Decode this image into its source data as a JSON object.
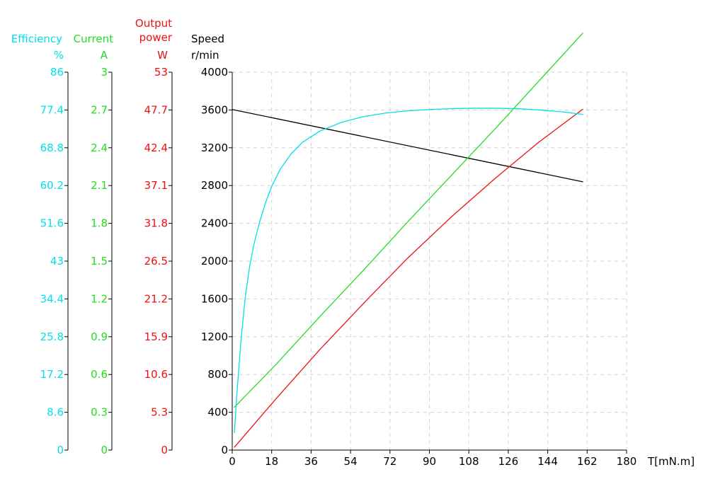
{
  "chart_data": {
    "type": "line",
    "x_axis": {
      "label": "T[mN.m]",
      "min": 0,
      "max": 180,
      "ticks": [
        0,
        18,
        36,
        54,
        72,
        90,
        108,
        126,
        144,
        162,
        180
      ],
      "grid": true
    },
    "y_axes": [
      {
        "id": "efficiency",
        "title": "Efficiency",
        "unit": "%",
        "color": "#00e0e8",
        "min": 0,
        "max": 86,
        "ticks": [
          "0",
          "8.6",
          "17.2",
          "25.8",
          "34.4",
          "43",
          "51.6",
          "60.2",
          "68.8",
          "77.4",
          "86"
        ]
      },
      {
        "id": "current",
        "title": "Current",
        "unit": "A",
        "color": "#22dd22",
        "min": 0,
        "max": 3,
        "ticks": [
          "0",
          "0.3",
          "0.6",
          "0.9",
          "1.2",
          "1.5",
          "1.8",
          "2.1",
          "2.4",
          "2.7",
          "3"
        ]
      },
      {
        "id": "power",
        "title": "Output power",
        "title_lines": [
          "Output",
          "power"
        ],
        "unit": "W",
        "color": "#ee1111",
        "min": 0,
        "max": 53,
        "ticks": [
          "0",
          "5.3",
          "10.6",
          "15.9",
          "21.2",
          "26.5",
          "31.8",
          "37.1",
          "42.4",
          "47.7",
          "53"
        ]
      },
      {
        "id": "speed",
        "title": "Speed",
        "unit": "r/min",
        "color": "#000000",
        "min": 0,
        "max": 4000,
        "ticks": [
          "0",
          "400",
          "800",
          "1200",
          "1600",
          "2000",
          "2400",
          "2800",
          "3200",
          "3600",
          "4000"
        ],
        "grid": true
      }
    ],
    "series": [
      {
        "axis": "speed",
        "color": "#000000",
        "x": [
          0,
          160
        ],
        "y": [
          3605,
          2840
        ]
      },
      {
        "axis": "current",
        "color": "#22dd22",
        "x": [
          1,
          20,
          40,
          60,
          80,
          100,
          120,
          140,
          160
        ],
        "y": [
          0.34,
          0.68,
          1.06,
          1.43,
          1.81,
          2.18,
          2.55,
          2.93,
          3.31
        ]
      },
      {
        "axis": "power",
        "color": "#ee1111",
        "x": [
          1,
          20,
          40,
          60,
          80,
          100,
          120,
          140,
          160
        ],
        "y": [
          0.4,
          7.2,
          14.1,
          20.6,
          26.9,
          32.7,
          38.1,
          43.2,
          47.8
        ]
      },
      {
        "axis": "efficiency",
        "color": "#00e0e8",
        "x": [
          1,
          2,
          4,
          6,
          8,
          10,
          12,
          15,
          18,
          22,
          27,
          32,
          40,
          50,
          60,
          70,
          80,
          90,
          100,
          110,
          120,
          130,
          140,
          150,
          160
        ],
        "y": [
          4,
          12,
          25,
          35,
          42,
          47,
          51,
          56,
          60,
          64,
          67.5,
          70,
          72.6,
          74.6,
          75.9,
          76.7,
          77.2,
          77.5,
          77.7,
          77.8,
          77.8,
          77.7,
          77.4,
          77,
          76.4
        ]
      }
    ]
  }
}
